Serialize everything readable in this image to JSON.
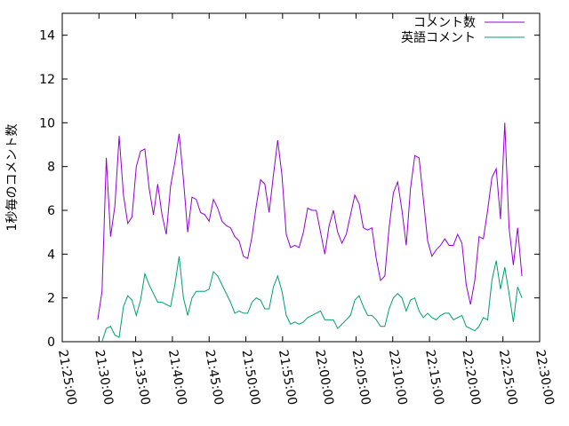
{
  "chart_data": {
    "type": "line",
    "y_label": "1秒毎のコメント数",
    "x": [
      "21:29:50",
      "21:30:25",
      "21:31:00",
      "21:31:35",
      "21:32:10",
      "21:32:45",
      "21:33:20",
      "21:33:55",
      "21:34:30",
      "21:35:05",
      "21:35:40",
      "21:36:15",
      "21:36:50",
      "21:37:25",
      "21:38:00",
      "21:38:35",
      "21:39:10",
      "21:39:45",
      "21:40:20",
      "21:40:55",
      "21:41:30",
      "21:42:05",
      "21:42:40",
      "21:43:15",
      "21:43:50",
      "21:44:25",
      "21:45:00",
      "21:45:35",
      "21:46:10",
      "21:46:45",
      "21:47:20",
      "21:47:55",
      "21:48:30",
      "21:49:05",
      "21:49:40",
      "21:50:15",
      "21:50:50",
      "21:51:25",
      "21:52:00",
      "21:52:35",
      "21:53:10",
      "21:53:45",
      "21:54:20",
      "21:54:55",
      "21:55:30",
      "21:56:05",
      "21:56:40",
      "21:57:15",
      "21:57:50",
      "21:58:25",
      "21:59:00",
      "21:59:35",
      "22:00:10",
      "22:00:45",
      "22:01:20",
      "22:01:55",
      "22:02:30",
      "22:03:05",
      "22:03:40",
      "22:04:15",
      "22:04:50",
      "22:05:25",
      "22:06:00",
      "22:06:35",
      "22:07:10",
      "22:07:45",
      "22:08:20",
      "22:08:55",
      "22:09:30",
      "22:10:05",
      "22:10:40",
      "22:11:15",
      "22:11:50",
      "22:12:25",
      "22:13:00",
      "22:13:35",
      "22:14:10",
      "22:14:45",
      "22:15:20",
      "22:15:55",
      "22:16:30",
      "22:17:05",
      "22:17:40",
      "22:18:15",
      "22:18:50",
      "22:19:25",
      "22:20:00",
      "22:20:35",
      "22:21:10",
      "22:21:45",
      "22:22:20",
      "22:22:55",
      "22:23:30",
      "22:24:05",
      "22:24:40",
      "22:25:15",
      "22:25:50",
      "22:26:25",
      "22:27:00",
      "22:27:35"
    ],
    "series": [
      {
        "name": "コメント数",
        "color": "#9400d3",
        "values": [
          1.0,
          2.3,
          8.4,
          4.8,
          6.2,
          9.4,
          6.7,
          5.4,
          5.7,
          8.0,
          8.7,
          8.8,
          7.0,
          5.8,
          7.2,
          5.8,
          4.9,
          7.1,
          8.2,
          9.5,
          7.4,
          5.0,
          6.6,
          6.5,
          5.9,
          5.8,
          5.5,
          6.5,
          6.1,
          5.5,
          5.3,
          5.2,
          4.8,
          4.6,
          3.9,
          3.8,
          4.8,
          6.2,
          7.4,
          7.2,
          5.9,
          7.6,
          9.2,
          7.6,
          4.9,
          4.3,
          4.4,
          4.3,
          5.0,
          6.1,
          6.0,
          6.0,
          5.0,
          4.0,
          5.3,
          6.0,
          5.0,
          4.5,
          4.9,
          5.8,
          6.7,
          6.3,
          5.2,
          5.1,
          5.2,
          3.8,
          2.8,
          3.0,
          5.2,
          6.8,
          7.3,
          6.0,
          4.4,
          7.0,
          8.5,
          8.4,
          6.5,
          4.6,
          3.9,
          4.2,
          4.4,
          4.7,
          4.4,
          4.4,
          4.9,
          4.5,
          2.6,
          1.7,
          2.8,
          4.8,
          4.7,
          6.0,
          7.5,
          7.9,
          5.6,
          10.0,
          5.2,
          3.5,
          5.2,
          3.0
        ]
      },
      {
        "name": "英語コメント",
        "color": "#009e73",
        "values": [
          null,
          0.0,
          0.6,
          0.7,
          0.3,
          0.2,
          1.6,
          2.1,
          1.9,
          1.2,
          1.9,
          3.1,
          2.6,
          2.2,
          1.8,
          1.8,
          1.7,
          1.6,
          2.6,
          3.9,
          2.0,
          1.2,
          2.0,
          2.3,
          2.3,
          2.3,
          2.4,
          3.2,
          3.0,
          2.6,
          2.2,
          1.8,
          1.3,
          1.4,
          1.3,
          1.3,
          1.8,
          2.0,
          1.9,
          1.5,
          1.5,
          2.5,
          3.0,
          2.3,
          1.2,
          0.8,
          0.9,
          0.8,
          0.9,
          1.1,
          1.2,
          1.3,
          1.4,
          1.0,
          1.0,
          1.0,
          0.6,
          0.8,
          1.0,
          1.2,
          1.9,
          2.1,
          1.6,
          1.2,
          1.2,
          1.0,
          0.7,
          0.7,
          1.5,
          2.0,
          2.2,
          2.0,
          1.4,
          1.9,
          2.0,
          1.4,
          1.1,
          1.3,
          1.1,
          1.0,
          1.2,
          1.3,
          1.3,
          1.0,
          1.1,
          1.2,
          0.7,
          0.6,
          0.5,
          0.7,
          1.1,
          1.0,
          2.8,
          3.7,
          2.4,
          3.4,
          2.2,
          0.9,
          2.5,
          2.0
        ]
      }
    ],
    "xlim": [
      "21:25:00",
      "22:30:00"
    ],
    "xticks": [
      "21:25:00",
      "21:30:00",
      "21:35:00",
      "21:40:00",
      "21:45:00",
      "21:50:00",
      "21:55:00",
      "22:00:00",
      "22:05:00",
      "22:10:00",
      "22:15:00",
      "22:20:00",
      "22:25:00",
      "22:30:00"
    ],
    "ylim": [
      0,
      15
    ],
    "yticks": [
      0,
      2,
      4,
      6,
      8,
      10,
      12,
      14
    ],
    "legend": "top-right"
  }
}
